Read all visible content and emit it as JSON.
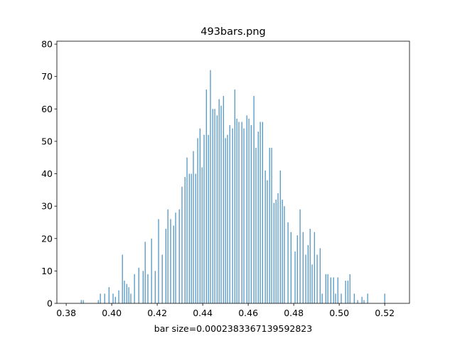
{
  "chart_data": {
    "type": "bar",
    "title": "493bars.png",
    "x_label": "bar size=0.0002383367139592823",
    "color": "#1f77b4",
    "x": [
      0.3866,
      0.3875,
      0.3941,
      0.395,
      0.3969,
      0.3988,
      0.4006,
      0.4016,
      0.4031,
      0.4047,
      0.4056,
      0.4066,
      0.4075,
      0.4084,
      0.41,
      0.4119,
      0.4138,
      0.4147,
      0.4159,
      0.4175,
      0.4191,
      0.4206,
      0.4222,
      0.4238,
      0.4247,
      0.4259,
      0.4272,
      0.4281,
      0.4297,
      0.4309,
      0.4322,
      0.4331,
      0.4341,
      0.435,
      0.4359,
      0.4369,
      0.4378,
      0.4388,
      0.4397,
      0.4406,
      0.4416,
      0.4425,
      0.4434,
      0.4444,
      0.4453,
      0.4463,
      0.4472,
      0.4481,
      0.4491,
      0.45,
      0.4509,
      0.4519,
      0.4531,
      0.4541,
      0.455,
      0.4559,
      0.4572,
      0.4581,
      0.4594,
      0.4603,
      0.4613,
      0.4625,
      0.4634,
      0.4644,
      0.4653,
      0.4663,
      0.4675,
      0.4684,
      0.4694,
      0.4703,
      0.4713,
      0.4722,
      0.4731,
      0.4741,
      0.475,
      0.4759,
      0.4775,
      0.4788,
      0.4806,
      0.4816,
      0.4828,
      0.4841,
      0.4853,
      0.4863,
      0.4872,
      0.4881,
      0.4891,
      0.4903,
      0.4916,
      0.4925,
      0.4941,
      0.495,
      0.4963,
      0.4975,
      0.4984,
      0.4994,
      0.5009,
      0.5028,
      0.5038,
      0.5047,
      0.5066,
      0.5081,
      0.51,
      0.5109,
      0.5125,
      0.52
    ],
    "values": [
      1,
      1,
      1,
      3,
      3,
      5,
      3,
      2,
      4,
      15,
      7,
      6,
      5,
      3,
      9,
      11,
      10,
      19,
      9,
      20,
      10,
      26,
      15,
      23,
      29,
      26,
      24,
      28,
      29,
      36,
      39,
      45,
      40,
      40,
      47,
      40,
      51,
      54,
      42,
      52,
      66,
      52,
      72,
      60,
      60,
      58,
      63,
      61,
      64,
      51,
      52,
      55,
      54,
      66,
      57,
      56,
      56,
      54,
      58,
      57,
      55,
      64,
      48,
      53,
      56,
      56,
      41,
      38,
      48,
      48,
      31,
      32,
      34,
      41,
      32,
      30,
      25,
      22,
      16,
      21,
      29,
      22,
      15,
      18,
      23,
      12,
      22,
      15,
      17,
      3,
      9,
      9,
      8,
      8,
      3,
      8,
      3,
      7,
      7,
      9,
      3,
      1,
      2,
      1,
      3,
      3
    ],
    "xlim": [
      0.3759,
      0.5309
    ],
    "ylim": [
      0,
      80.9
    ],
    "xticks": [
      {
        "value": 0.38,
        "label": "0.38"
      },
      {
        "value": 0.4,
        "label": "0.40"
      },
      {
        "value": 0.42,
        "label": "0.42"
      },
      {
        "value": 0.44,
        "label": "0.44"
      },
      {
        "value": 0.46,
        "label": "0.46"
      },
      {
        "value": 0.48,
        "label": "0.48"
      },
      {
        "value": 0.5,
        "label": "0.50"
      },
      {
        "value": 0.52,
        "label": "0.52"
      }
    ],
    "yticks": [
      0,
      10,
      20,
      30,
      40,
      50,
      60,
      70,
      80
    ]
  }
}
